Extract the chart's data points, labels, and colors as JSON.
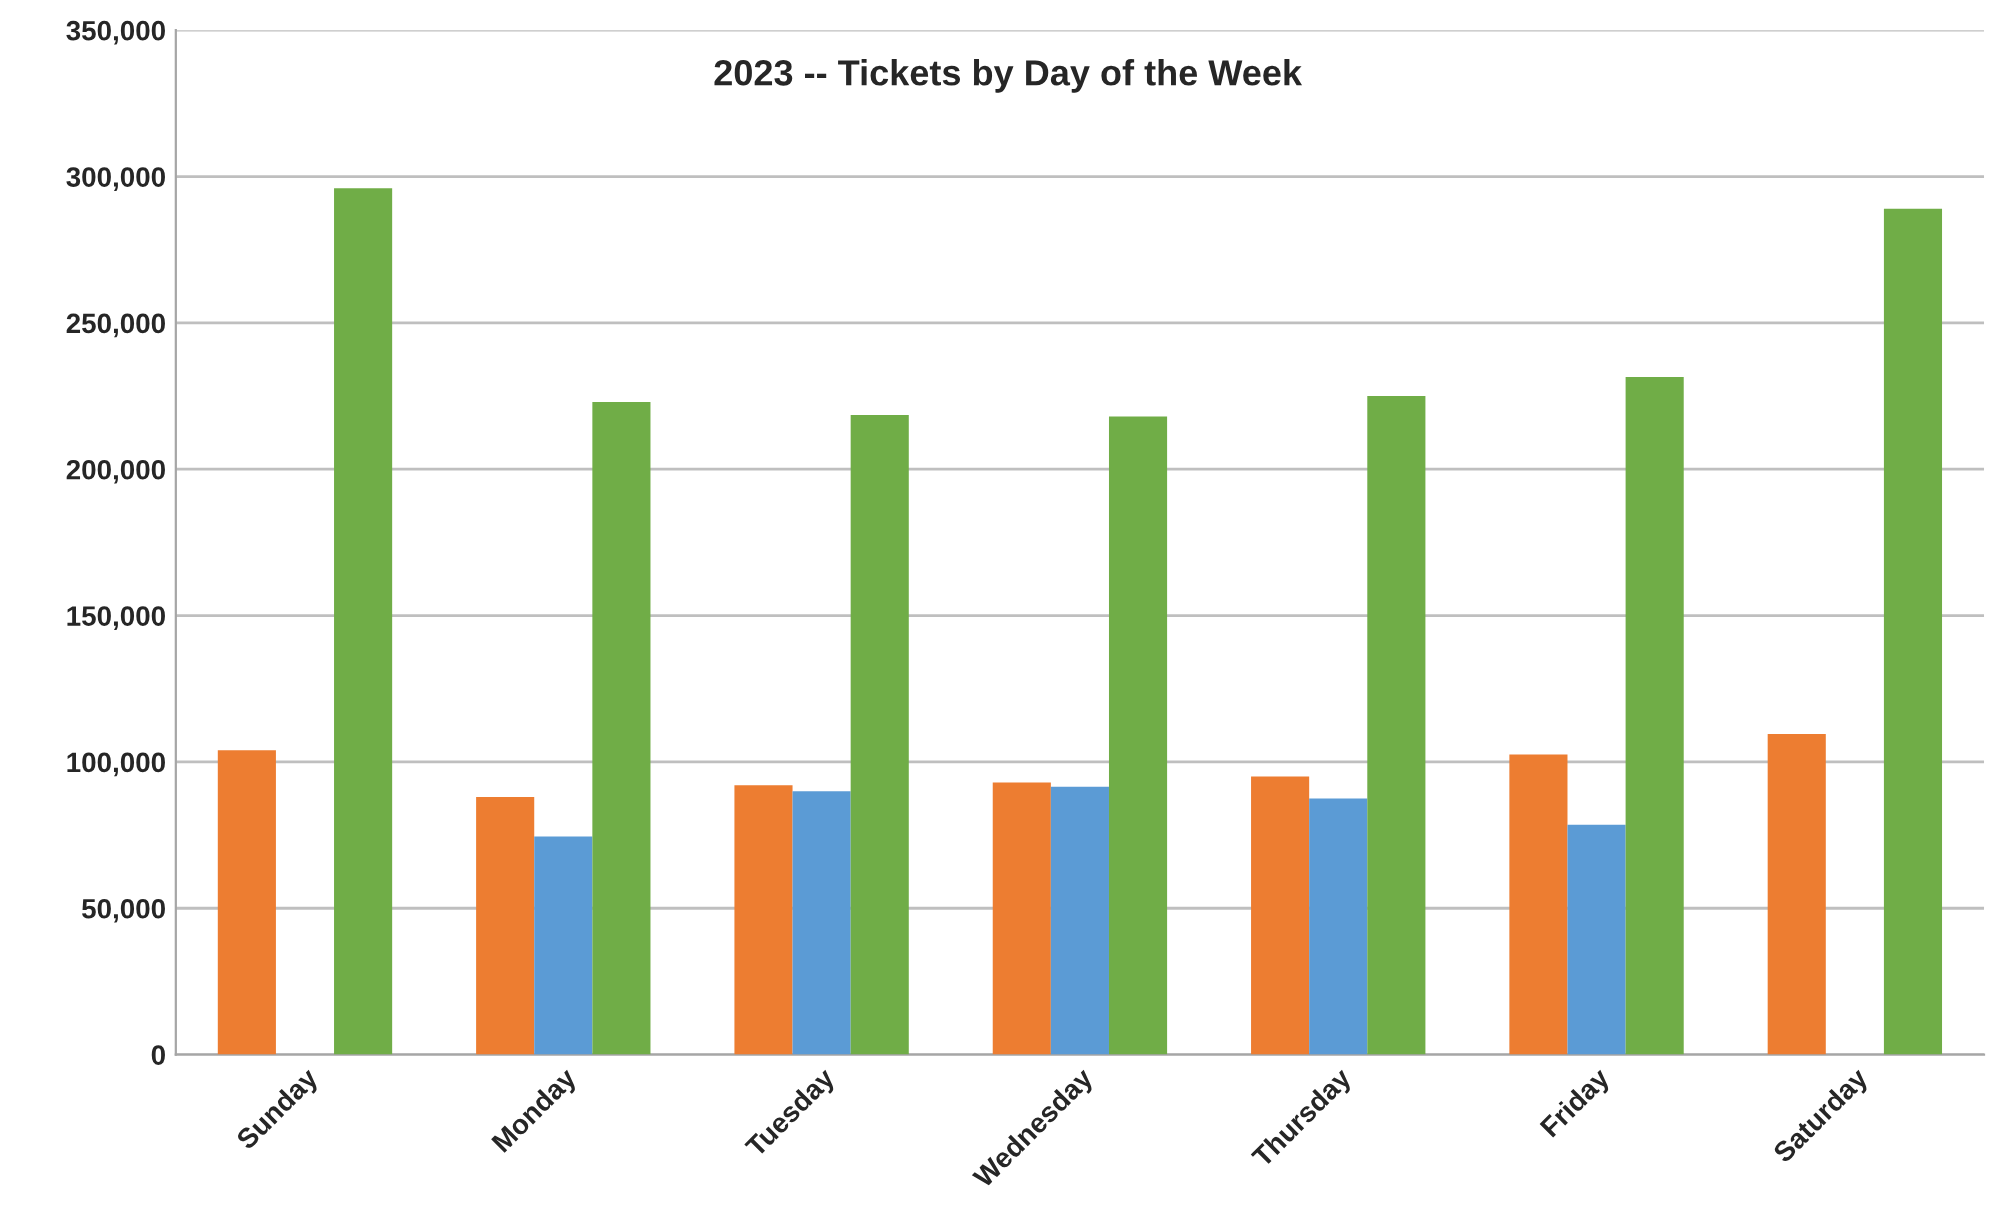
{
  "chart_data": {
    "type": "bar",
    "title": "2023 -- Tickets by Day of the Week",
    "categories": [
      "Sunday",
      "Monday",
      "Tuesday",
      "Wednesday",
      "Thursday",
      "Friday",
      "Saturday"
    ],
    "series": [
      {
        "color": "#ed7d31",
        "values": [
          104000,
          88000,
          92000,
          93000,
          95000,
          102500,
          109500
        ]
      },
      {
        "color": "#5b9bd5",
        "values": [
          null,
          74500,
          90000,
          91500,
          87500,
          78500,
          null
        ]
      },
      {
        "color": "#70ad47",
        "values": [
          296000,
          223000,
          218500,
          218000,
          225000,
          231500,
          289000
        ]
      }
    ],
    "ylim": [
      0,
      350000
    ],
    "yticks": [
      {
        "value": 0,
        "label": "0"
      },
      {
        "value": 50000,
        "label": "50,000"
      },
      {
        "value": 100000,
        "label": "100,000"
      },
      {
        "value": 150000,
        "label": "150,000"
      },
      {
        "value": 200000,
        "label": "200,000"
      },
      {
        "value": 250000,
        "label": "250,000"
      },
      {
        "value": 300000,
        "label": "300,000"
      },
      {
        "value": 350000,
        "label": "350,000"
      }
    ],
    "grid": "y",
    "legend": false
  }
}
